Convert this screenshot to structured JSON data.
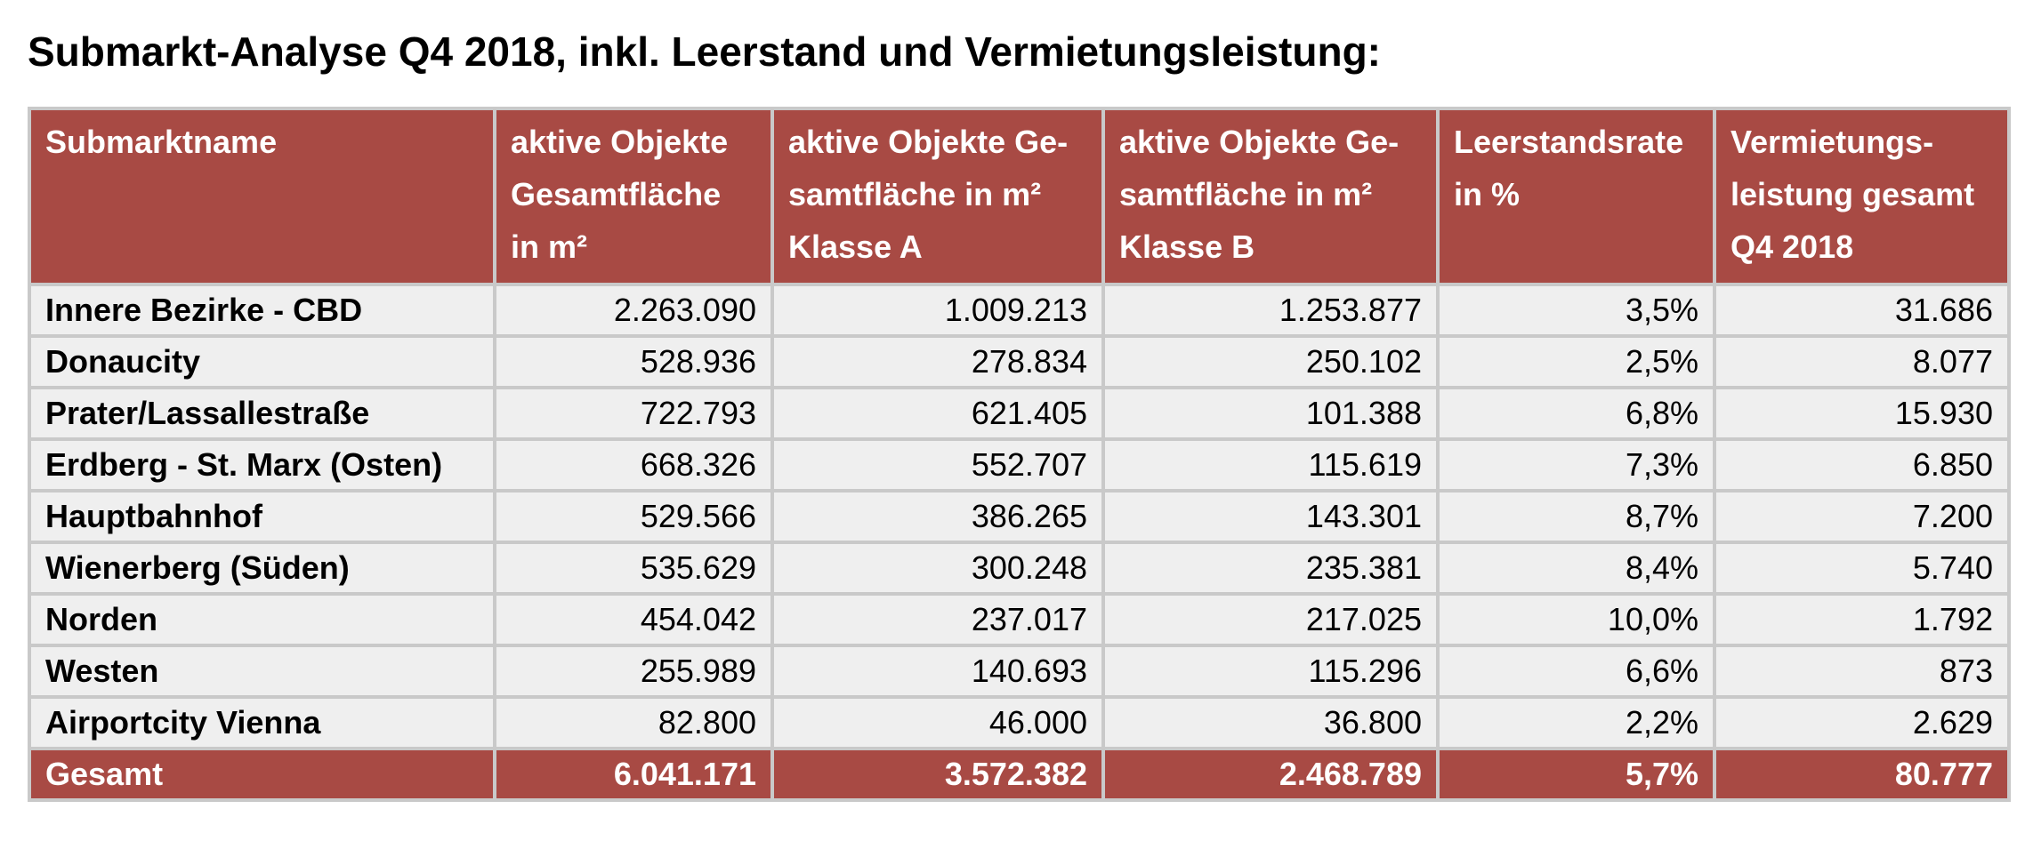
{
  "title": "Submarkt-Analyse Q4 2018, inkl. Leerstand und Vermietungsleistung:",
  "colors": {
    "header_bg": "#a84a44",
    "header_text": "#ffffff",
    "row_bg": "#efefef",
    "border": "#c9c9c9"
  },
  "table": {
    "headers": [
      "Submarktname",
      "aktive Objekte\nGesamtfläche\nin m²",
      "aktive Objekte Ge-\nsamtfläche in m²\nKlasse A",
      "aktive Objekte Ge-\nsamtfläche in m²\nKlasse B",
      "Leerstandsrate\nin %",
      "Vermietungs-\nleistung gesamt\nQ4 2018"
    ],
    "rows": [
      [
        "Innere Bezirke - CBD",
        "2.263.090",
        "1.009.213",
        "1.253.877",
        "3,5%",
        "31.686"
      ],
      [
        "Donaucity",
        "528.936",
        "278.834",
        "250.102",
        "2,5%",
        "8.077"
      ],
      [
        "Prater/Lassallestraße",
        "722.793",
        "621.405",
        "101.388",
        "6,8%",
        "15.930"
      ],
      [
        "Erdberg - St. Marx (Osten)",
        "668.326",
        "552.707",
        "115.619",
        "7,3%",
        "6.850"
      ],
      [
        "Hauptbahnhof",
        "529.566",
        "386.265",
        "143.301",
        "8,7%",
        "7.200"
      ],
      [
        "Wienerberg (Süden)",
        "535.629",
        "300.248",
        "235.381",
        "8,4%",
        "5.740"
      ],
      [
        "Norden",
        "454.042",
        "237.017",
        "217.025",
        "10,0%",
        "1.792"
      ],
      [
        "Westen",
        "255.989",
        "140.693",
        "115.296",
        "6,6%",
        "873"
      ],
      [
        "Airportcity Vienna",
        "82.800",
        "46.000",
        "36.800",
        "2,2%",
        "2.629"
      ]
    ],
    "total": [
      "Gesamt",
      "6.041.171",
      "3.572.382",
      "2.468.789",
      "5,7%",
      "80.777"
    ]
  }
}
